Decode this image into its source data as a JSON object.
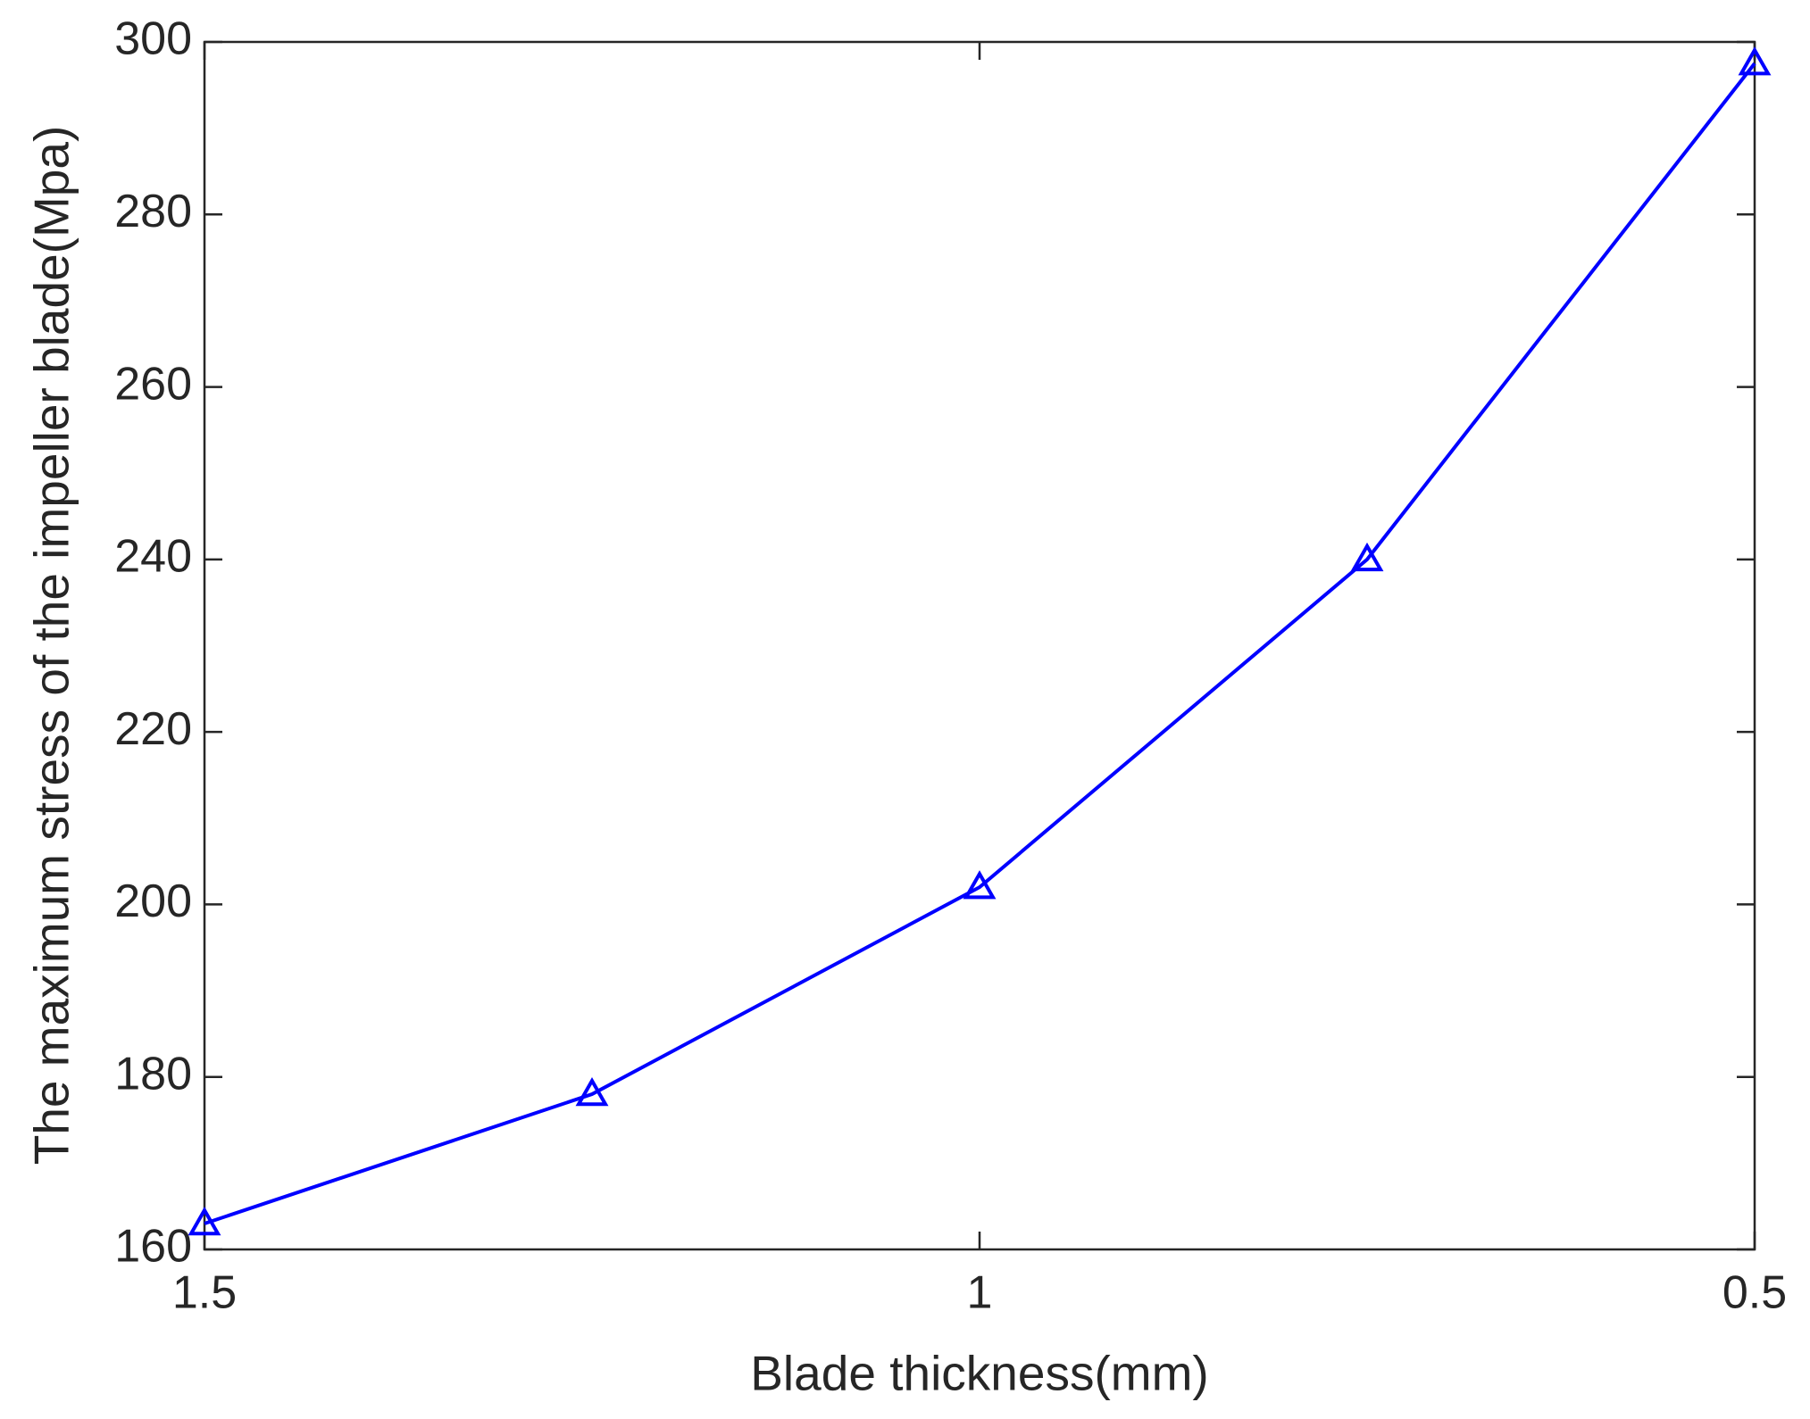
{
  "chart_data": {
    "type": "line",
    "x_label": "Blade thickness(mm)",
    "y_label": "The maximum stress of the impeller blade(Mpa)",
    "x": [
      1.5,
      1.25,
      1,
      0.75,
      0.5
    ],
    "values": [
      163,
      178,
      202,
      240,
      297.5
    ],
    "color": "#0000ff",
    "marker": "triangle",
    "xlim": [
      1.5,
      0.5
    ],
    "xticks": [
      1.5,
      1,
      0.5
    ],
    "ylim": [
      160,
      300
    ],
    "yticks": [
      160,
      180,
      200,
      220,
      240,
      260,
      280,
      300
    ],
    "grid": false
  }
}
